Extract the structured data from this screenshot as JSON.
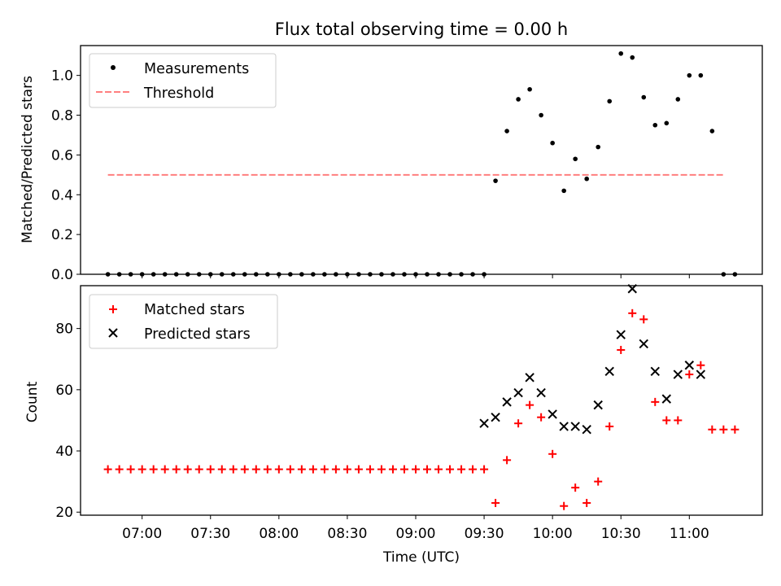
{
  "chart_data": [
    {
      "type": "scatter",
      "title": "Flux total observing time = 0.00 h",
      "ylabel": "Matched/Predicted stars",
      "ylim": [
        0,
        1.15
      ],
      "yticks": [
        0.0,
        0.2,
        0.4,
        0.6,
        0.8,
        1.0
      ],
      "ytick_labels": [
        "0.0",
        "0.2",
        "0.4",
        "0.6",
        "0.8",
        "1.0"
      ],
      "x_units": "minutes since 00:00 UTC",
      "xlim": [
        393,
        692
      ],
      "legend": "upper-left",
      "series": [
        {
          "name": "Measurements",
          "marker": "dot",
          "color": "#000000",
          "x": [
            405,
            410,
            415,
            420,
            425,
            430,
            435,
            440,
            445,
            450,
            455,
            460,
            465,
            470,
            475,
            480,
            485,
            490,
            495,
            500,
            505,
            510,
            515,
            520,
            525,
            530,
            535,
            540,
            545,
            550,
            555,
            560,
            565,
            570,
            575,
            580,
            585,
            590,
            595,
            600,
            605,
            610,
            615,
            620,
            625,
            630,
            635,
            640,
            645,
            650,
            655,
            660,
            665,
            670
          ],
          "y": [
            0,
            0,
            0,
            0,
            0,
            0,
            0,
            0,
            0,
            0,
            0,
            0,
            0,
            0,
            0,
            0,
            0,
            0,
            0,
            0,
            0,
            0,
            0,
            0,
            0,
            0,
            0,
            0,
            0,
            0,
            0,
            0,
            0,
            0,
            0.47,
            0.72,
            0.88,
            0.93,
            0.8,
            0.66,
            0.42,
            0.58,
            0.48,
            0.64,
            0.87,
            1.11,
            1.09,
            0.89,
            0.75,
            0.76,
            0.88,
            1.0,
            1.0,
            0.72
          ]
        },
        {
          "name": "",
          "marker": "dot",
          "color": "#000000",
          "x": [
            675,
            680
          ],
          "y": [
            0,
            0
          ]
        },
        {
          "name": "Threshold",
          "marker": "dashed-line",
          "color": "#ff7f7f",
          "x": [
            405,
            675
          ],
          "y": [
            0.5,
            0.5
          ]
        }
      ]
    },
    {
      "type": "scatter",
      "xlabel": "Time (UTC)",
      "ylabel": "Count",
      "ylim": [
        19,
        94
      ],
      "yticks": [
        20,
        40,
        60,
        80
      ],
      "ytick_labels": [
        "20",
        "40",
        "60",
        "80"
      ],
      "x_units": "minutes since 00:00 UTC",
      "xlim": [
        393,
        692
      ],
      "xticks": [
        420,
        450,
        480,
        510,
        540,
        570,
        600,
        630,
        660
      ],
      "xtick_labels": [
        "07:00",
        "07:30",
        "08:00",
        "08:30",
        "09:00",
        "09:30",
        "10:00",
        "10:30",
        "11:00"
      ],
      "legend": "upper-left",
      "series": [
        {
          "name": "Matched stars",
          "marker": "plus",
          "color": "#ff0000",
          "x": [
            405,
            410,
            415,
            420,
            425,
            430,
            435,
            440,
            445,
            450,
            455,
            460,
            465,
            470,
            475,
            480,
            485,
            490,
            495,
            500,
            505,
            510,
            515,
            520,
            525,
            530,
            535,
            540,
            545,
            550,
            555,
            560,
            565,
            570,
            575,
            580,
            585,
            590,
            595,
            600,
            605,
            610,
            615,
            620,
            625,
            630,
            635,
            640,
            645,
            650,
            655,
            660,
            665,
            670,
            675,
            680
          ],
          "y": [
            34,
            34,
            34,
            34,
            34,
            34,
            34,
            34,
            34,
            34,
            34,
            34,
            34,
            34,
            34,
            34,
            34,
            34,
            34,
            34,
            34,
            34,
            34,
            34,
            34,
            34,
            34,
            34,
            34,
            34,
            34,
            34,
            34,
            34,
            23,
            37,
            49,
            55,
            51,
            39,
            22,
            28,
            23,
            30,
            48,
            73,
            85,
            83,
            56,
            50,
            50,
            65,
            68,
            47,
            47,
            47
          ]
        },
        {
          "name": "Predicted stars",
          "marker": "x",
          "color": "#000000",
          "x": [
            570,
            575,
            580,
            585,
            590,
            595,
            600,
            605,
            610,
            615,
            620,
            625,
            630,
            635,
            640,
            645,
            650,
            655,
            660,
            665
          ],
          "y": [
            49,
            51,
            56,
            59,
            64,
            59,
            52,
            48,
            48,
            47,
            55,
            66,
            78,
            93,
            75,
            66,
            57,
            65,
            68,
            65
          ]
        }
      ]
    }
  ]
}
